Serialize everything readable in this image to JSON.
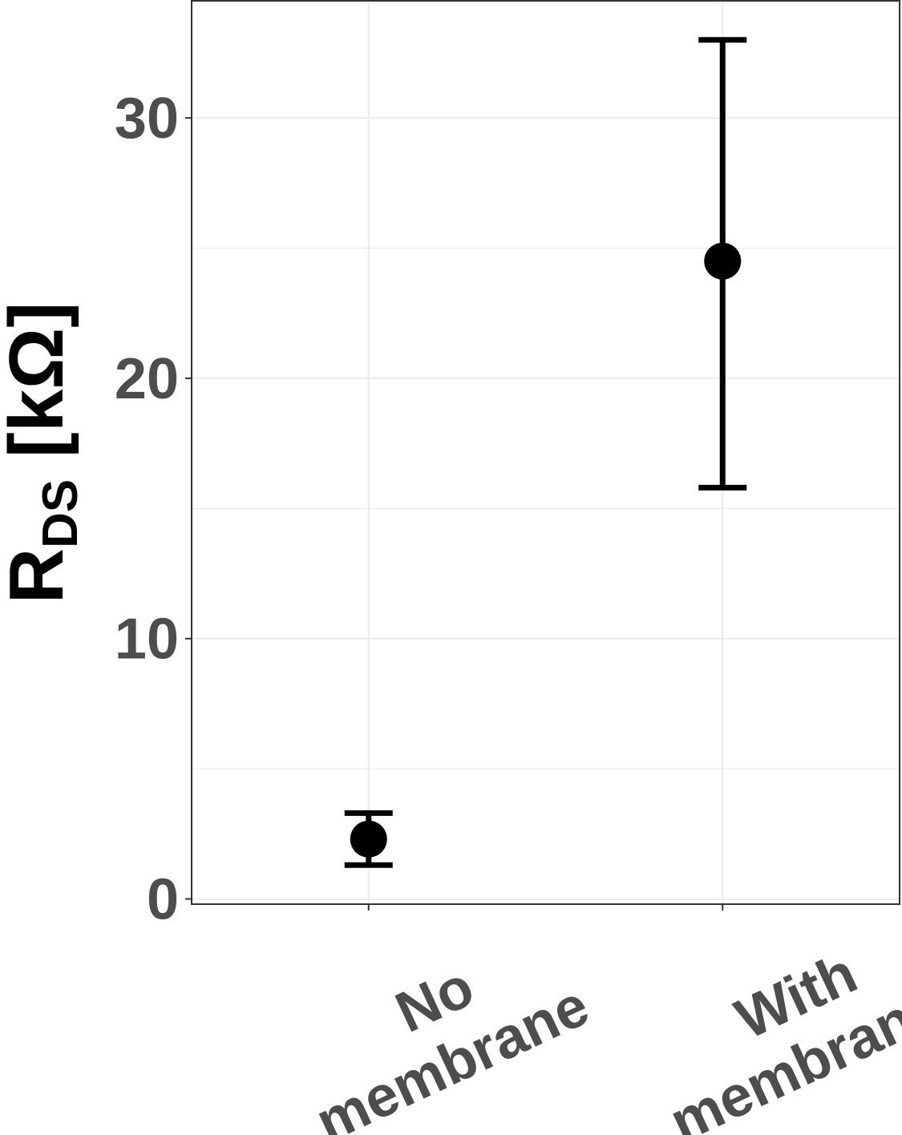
{
  "chart_data": {
    "type": "scatter",
    "subtype": "point-with-errorbars",
    "categories": [
      "No membrane",
      "With membrane"
    ],
    "category_label_lines": [
      [
        "No",
        "membrane"
      ],
      [
        "With",
        "membrane"
      ]
    ],
    "series": [
      {
        "values": [
          2.3,
          24.5
        ],
        "error_low": [
          1.3,
          15.8
        ],
        "error_high": [
          3.3,
          33.0
        ]
      }
    ],
    "ylabel_main": "R",
    "ylabel_sub": "DS",
    "ylabel_unit": " [kΩ]",
    "ylim": [
      -0.2,
      34.5
    ],
    "yticks": [
      0,
      10,
      20,
      30
    ],
    "ytick_labels": [
      "0",
      "10",
      "20",
      "30"
    ],
    "y_minor_ticks": [
      5,
      15,
      25
    ],
    "grid": true,
    "legend": "none",
    "colors": {
      "point": "#000000",
      "errorbar": "#000000",
      "tick_label": "#4d4d4d",
      "grid": "#ebebeb",
      "panel_border": "#333333"
    }
  }
}
